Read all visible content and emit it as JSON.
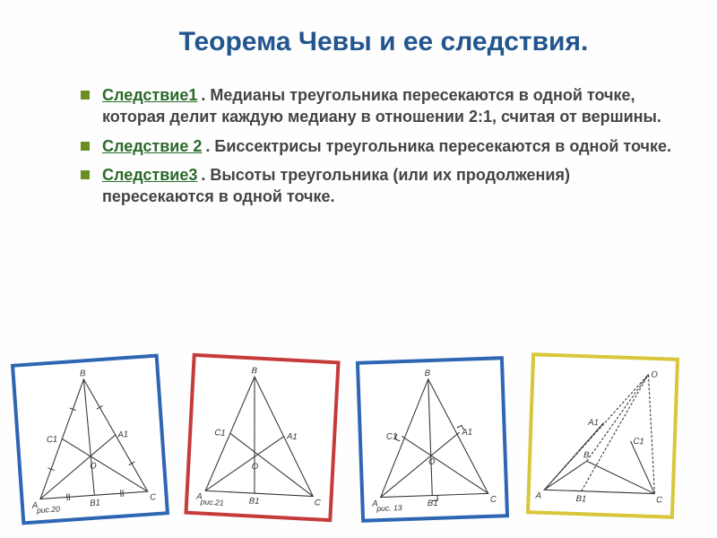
{
  "title": "Теорема Чевы и ее следствия.",
  "items": [
    {
      "lead": "Следствие1",
      "text": ". Медианы треугольника пересекаются в одной точке, которая делит каждую медиану в отношении 2:1, считая от вершины."
    },
    {
      "lead": "Следствие 2",
      "text": ". Биссектрисы треугольника пересекаются в одной точке."
    },
    {
      "lead": "Следствие3",
      "text": ". Высоты треугольника (или их продолжения) пересекаются в одной точке."
    }
  ],
  "diagrams": [
    {
      "border": "#2f66b3",
      "caption": "рис.20",
      "A": [
        15,
        150
      ],
      "B": [
        75,
        15
      ],
      "C": [
        140,
        150
      ],
      "A1": [
        107,
        82
      ],
      "B1": [
        78,
        150
      ],
      "C1": [
        45,
        82
      ],
      "O": [
        78,
        105
      ],
      "labels": {
        "A": "A",
        "B": "B",
        "C": "C",
        "A1": "A1",
        "B1": "B1",
        "C1": "C1",
        "O": "O"
      },
      "ticks": true
    },
    {
      "border": "#c63a3a",
      "caption": "рис.21",
      "A": [
        15,
        150
      ],
      "B": [
        65,
        15
      ],
      "C": [
        140,
        150
      ],
      "A1": [
        103,
        82
      ],
      "B1": [
        72,
        150
      ],
      "C1": [
        40,
        82
      ],
      "O": [
        70,
        108
      ],
      "labels": {
        "A": "A",
        "B": "B",
        "C": "C",
        "A1": "A1",
        "B1": "B1",
        "C1": "C1",
        "O": "O"
      },
      "ticks": false
    },
    {
      "border": "#2f66b3",
      "caption": "рис. 13",
      "A": [
        15,
        150
      ],
      "B": [
        75,
        15
      ],
      "C": [
        140,
        150
      ],
      "A1": [
        109,
        78
      ],
      "B1": [
        75,
        150
      ],
      "C1": [
        42,
        80
      ],
      "O": [
        75,
        100
      ],
      "labels": {
        "A": "A",
        "B": "B",
        "C": "C",
        "A1": "A1",
        "B1": "B1",
        "C1": "C1",
        "O": "O"
      },
      "alt": true
    },
    {
      "border": "#d9c63a",
      "caption": "",
      "A": [
        12,
        150
      ],
      "B": [
        60,
        115
      ],
      "C": [
        140,
        150
      ],
      "Oext": [
        128,
        12
      ],
      "A1": [
        78,
        70
      ],
      "B1": [
        55,
        150
      ],
      "C1": [
        110,
        90
      ],
      "labels": {
        "A": "A",
        "B": "B",
        "C": "C",
        "A1": "A1",
        "B1": "B1",
        "C1": "C1",
        "O": "O"
      },
      "obtuse": true
    }
  ],
  "colors": {
    "title": "#22568f",
    "lead": "#2a6a2a",
    "bullet": "#6b8e23",
    "body": "#444444"
  }
}
